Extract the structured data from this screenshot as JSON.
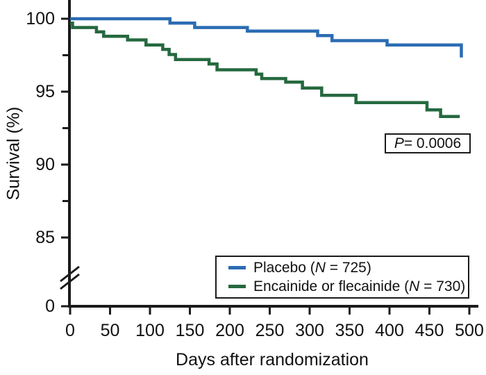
{
  "chart_data": {
    "type": "line",
    "subtype": "kaplan-meier-step-survival",
    "title": "",
    "x_axis": {
      "label": "Days after randomization",
      "ticks": [
        0,
        50,
        100,
        150,
        200,
        250,
        300,
        350,
        400,
        450,
        500
      ],
      "range": [
        0,
        500
      ]
    },
    "y_axis": {
      "label": "Survival (%)",
      "major_ticks": [
        100,
        95,
        90,
        85
      ],
      "minor_ticks": [
        97.5,
        92.5,
        87.5
      ],
      "zero_label": "0",
      "axis_break": true,
      "display_range": [
        85,
        100
      ]
    },
    "annotations": {
      "p_label": {
        "italic": "P",
        "rest": " = 0.0006"
      }
    },
    "colors": {
      "placebo": "#2b6cb3",
      "encainide": "#25693f",
      "axis": "#1a1a1a"
    },
    "series": [
      {
        "name": "Placebo",
        "n": 725,
        "color": "#2b6cb3",
        "start_pct": 100,
        "steps": [
          {
            "day": 125,
            "pct": 99.7
          },
          {
            "day": 156,
            "pct": 99.4
          },
          {
            "day": 222,
            "pct": 99.15
          },
          {
            "day": 310,
            "pct": 98.85
          },
          {
            "day": 328,
            "pct": 98.5
          },
          {
            "day": 397,
            "pct": 98.2
          },
          {
            "day": 490,
            "pct": 97.35
          }
        ]
      },
      {
        "name": "Encainide or flecainide",
        "n": 730,
        "color": "#25693f",
        "start_pct": 99.7,
        "steps": [
          {
            "day": 3,
            "pct": 99.4
          },
          {
            "day": 33,
            "pct": 99.1
          },
          {
            "day": 42,
            "pct": 98.8
          },
          {
            "day": 72,
            "pct": 98.55
          },
          {
            "day": 95,
            "pct": 98.2
          },
          {
            "day": 116,
            "pct": 97.9
          },
          {
            "day": 124,
            "pct": 97.55
          },
          {
            "day": 132,
            "pct": 97.2
          },
          {
            "day": 174,
            "pct": 96.9
          },
          {
            "day": 184,
            "pct": 96.5
          },
          {
            "day": 233,
            "pct": 96.2
          },
          {
            "day": 240,
            "pct": 95.9
          },
          {
            "day": 270,
            "pct": 95.65
          },
          {
            "day": 291,
            "pct": 95.25
          },
          {
            "day": 315,
            "pct": 94.75
          },
          {
            "day": 358,
            "pct": 94.25
          },
          {
            "day": 447,
            "pct": 93.75
          },
          {
            "day": 464,
            "pct": 93.3
          },
          {
            "day": 488,
            "pct": 93.3
          }
        ]
      }
    ],
    "legend": {
      "position": "bottom-right",
      "items": [
        {
          "pre": "Placebo (",
          "italic": "N",
          "post": " = 725)",
          "color": "#2b6cb3"
        },
        {
          "pre": "Encainide or flecainide (",
          "italic": "N",
          "post": " = 730)",
          "color": "#25693f"
        }
      ]
    }
  }
}
